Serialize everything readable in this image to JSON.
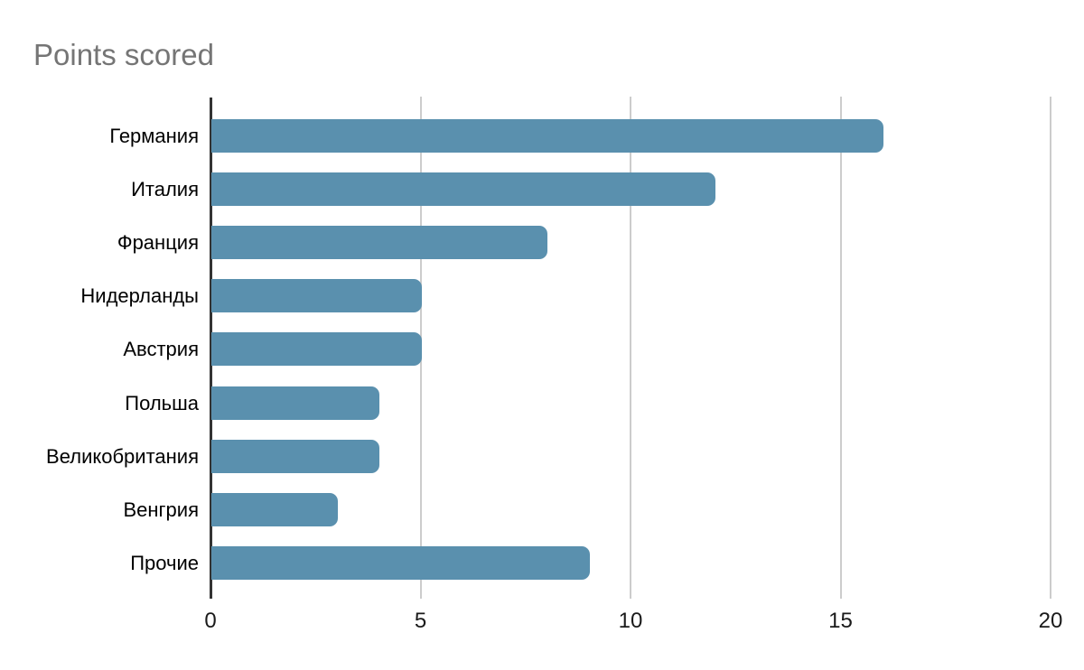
{
  "title": "Points scored",
  "colors": {
    "bar": "#5a90ae",
    "title": "#757575",
    "axis": "#333333",
    "gridline": "#cccccc",
    "tick_label": "#1a1a1a",
    "category_label": "#000000",
    "background": "#ffffff"
  },
  "chart_data": {
    "type": "bar",
    "orientation": "horizontal",
    "title": "Points scored",
    "categories": [
      "Германия",
      "Италия",
      "Франция",
      "Нидерланды",
      "Австрия",
      "Польша",
      "Великобритания",
      "Венгрия",
      "Прочие"
    ],
    "values": [
      16,
      12,
      8,
      5,
      5,
      4,
      4,
      3,
      9
    ],
    "xlabel": "",
    "ylabel": "",
    "xlim": [
      0,
      20
    ],
    "xticks": [
      0,
      5,
      10,
      15,
      20
    ],
    "grid": true,
    "legend": false
  }
}
